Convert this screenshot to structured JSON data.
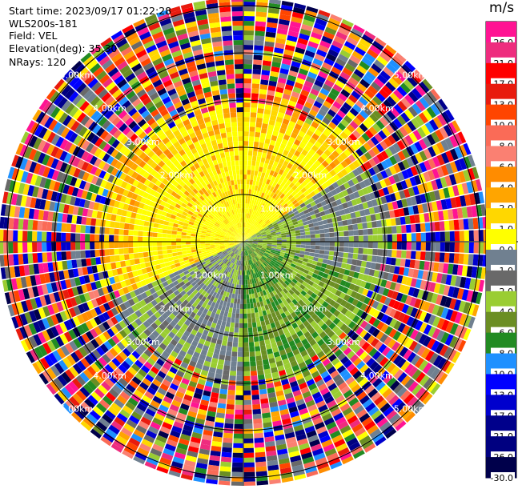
{
  "info": {
    "start_time": "Start time: 2023/09/17 01:22:28",
    "instrument": "WLS200s-181",
    "field": "Field: VEL",
    "elevation": "Elevation(deg): 35.30",
    "nrays": "NRays: 120"
  },
  "chart_data": {
    "type": "ppi",
    "field": "VEL",
    "units": "m/s",
    "nrays": 120,
    "elevation_deg": 35.3,
    "range_rings_km": [
      1.0,
      2.0,
      3.0,
      4.0,
      5.0
    ],
    "ring_labels": [
      "1.00km",
      "2.00km",
      "3.00km",
      "4.00km",
      "5.00km"
    ],
    "colorbar": {
      "title": "m/s",
      "ticks": [
        "26.0",
        "21.0",
        "17.0",
        "13.0",
        "10.0",
        "8.0",
        "6.0",
        "4.0",
        "2.0",
        "1.0",
        "0.0",
        "-1.0",
        "-2.0",
        "-4.0",
        "-6.0",
        "-8.0",
        "-10.0",
        "-13.0",
        "-17.0",
        "-21.0",
        "-26.0",
        "-30.0"
      ],
      "colors": [
        "#ff1493",
        "#ee2c7e",
        "#ff0000",
        "#e81b0e",
        "#ff4500",
        "#fa6b57",
        "#fa8072",
        "#ff8c00",
        "#ffa500",
        "#ffd700",
        "#ffff00",
        "#708090",
        "#696969",
        "#9acd32",
        "#6b8e23",
        "#228b22",
        "#1e90ff",
        "#0000ff",
        "#0000cd",
        "#00008b",
        "#000080",
        "#00004b"
      ]
    },
    "sectors": [
      {
        "from_deg": 0,
        "to_deg": 55,
        "dominant": "4.0 to 6.0 (yellow / orange)"
      },
      {
        "from_deg": 55,
        "to_deg": 105,
        "dominant": "0.0 to -2.0 (grey / light green)"
      },
      {
        "from_deg": 105,
        "to_deg": 180,
        "dominant": "-2.0 to -8.0 (olive / green)"
      },
      {
        "from_deg": 180,
        "to_deg": 245,
        "dominant": "-1.0 to -2.0 (grey / light green)"
      },
      {
        "from_deg": 245,
        "to_deg": 360,
        "dominant": "2.0 to 6.0 (yellow / orange)"
      }
    ],
    "outer_noise_beyond_km": 3.0
  }
}
